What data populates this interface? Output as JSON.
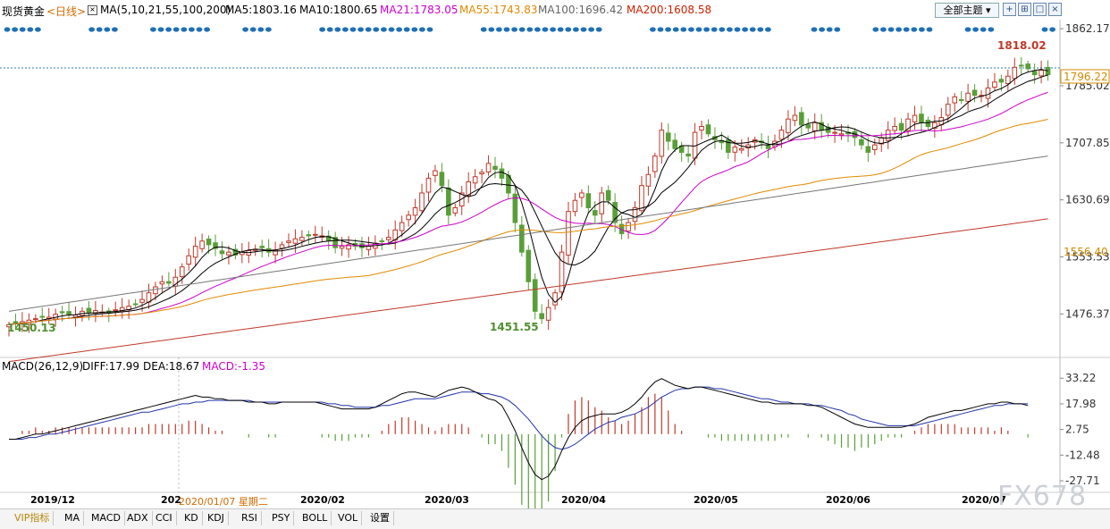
{
  "header": {
    "symbol": "现货黄金",
    "period": "<日线>",
    "ma_label": "MA(5,10,21,55,100,200)",
    "ma_items": [
      {
        "text": "MA5:1803.16",
        "color": "#000000"
      },
      {
        "text": "MA10:1800.65",
        "color": "#000000"
      },
      {
        "text": "MA21:1783.05",
        "color": "#cc00cc"
      },
      {
        "text": "MA55:1743.83",
        "color": "#e08a00"
      },
      {
        "text": "MA100:1696.42",
        "color": "#666666"
      },
      {
        "text": "MA200:1608.58",
        "color": "#cc2200"
      }
    ],
    "theme_button": "全部主题",
    "icons": [
      "add-window-icon",
      "split-window-icon",
      "maximize-icon",
      "close-icon"
    ]
  },
  "price_axis": {
    "ticks": [
      "1862.17",
      "1785.02",
      "1707.85",
      "1630.69",
      "1553.53",
      "1476.37"
    ],
    "tick_values": [
      1862.17,
      1785.02,
      1707.85,
      1630.69,
      1553.53,
      1476.37
    ],
    "current_price": "1796.22",
    "ma55_tag": "1556.40"
  },
  "annotations": {
    "low_left": "1450.13",
    "low_mid": "1451.55",
    "high": "1818.02"
  },
  "macd": {
    "label": "MACD(26,12,9)",
    "diff": "DIFF:17.99",
    "dea": "DEA:18.67",
    "macd": "MACD:-1.35",
    "ticks": [
      "33.22",
      "17.98",
      "2.75",
      "-12.48",
      "-27.71"
    ],
    "tick_values": [
      33.22,
      17.98,
      2.75,
      -12.48,
      -27.71
    ]
  },
  "dates": {
    "labels": [
      "2019/12",
      "202",
      "2020/02",
      "2020/03",
      "2020/04",
      "2020/05",
      "2020/06",
      "2020/07"
    ],
    "cursor_date": "2020/01/07 星期二"
  },
  "bottom_tabs": [
    "VIP指标",
    "MA",
    "MACD",
    "ADX",
    "CCI",
    "KD",
    "KDJ",
    "RSI",
    "PSY",
    "BOLL",
    "VOL",
    "设置"
  ],
  "watermark": "FX678",
  "colors": {
    "up": "#c0392b",
    "down": "#5a9e3a",
    "ma5": "#000000",
    "ma10": "#000000",
    "ma21": "#cc00cc",
    "ma55": "#e08a00",
    "ma100": "#777777",
    "ma200": "#c0392b",
    "diff": "#000000",
    "dea": "#2233aa",
    "event_dot": "#1f6fb5"
  },
  "chart_data": {
    "type": "candlestick",
    "title": "现货黄金 日线",
    "ylim": [
      1420,
      1872
    ],
    "macd_ylim": [
      -33,
      36
    ],
    "close_series": [
      1462,
      1464,
      1466,
      1468,
      1470,
      1473,
      1472,
      1476,
      1478,
      1476,
      1475,
      1480,
      1478,
      1481,
      1479,
      1478,
      1482,
      1485,
      1487,
      1490,
      1496,
      1505,
      1513,
      1520,
      1518,
      1526,
      1540,
      1555,
      1568,
      1575,
      1570,
      1565,
      1558,
      1560,
      1556,
      1560,
      1562,
      1564,
      1566,
      1560,
      1563,
      1570,
      1575,
      1578,
      1580,
      1582,
      1584,
      1582,
      1576,
      1566,
      1568,
      1570,
      1568,
      1566,
      1568,
      1572,
      1575,
      1580,
      1590,
      1600,
      1610,
      1620,
      1640,
      1660,
      1670,
      1650,
      1610,
      1620,
      1640,
      1655,
      1662,
      1668,
      1680,
      1672,
      1660,
      1640,
      1600,
      1560,
      1520,
      1480,
      1470,
      1485,
      1505,
      1560,
      1615,
      1630,
      1640,
      1620,
      1610,
      1640,
      1630,
      1600,
      1585,
      1600,
      1620,
      1650,
      1665,
      1690,
      1725,
      1710,
      1700,
      1695,
      1690,
      1722,
      1730,
      1720,
      1712,
      1708,
      1695,
      1702,
      1700,
      1705,
      1712,
      1708,
      1700,
      1710,
      1725,
      1740,
      1745,
      1732,
      1728,
      1735,
      1725,
      1722,
      1722,
      1720,
      1720,
      1715,
      1705,
      1695,
      1705,
      1715,
      1725,
      1730,
      1725,
      1740,
      1745,
      1735,
      1730,
      1735,
      1742,
      1760,
      1770,
      1765,
      1775,
      1772,
      1772,
      1782,
      1790,
      1790,
      1798,
      1810,
      1812,
      1808,
      1800,
      1806,
      1800
    ],
    "diff_series": [
      -3,
      -3,
      -2,
      -1,
      0,
      0,
      1,
      2,
      3,
      4,
      5,
      6,
      7,
      8,
      9,
      10,
      11,
      12,
      13,
      14,
      15,
      16,
      17,
      18,
      19,
      20,
      21,
      22,
      23,
      22,
      22,
      21,
      21,
      20,
      20,
      20,
      19,
      19,
      19,
      18,
      18,
      19,
      19,
      19,
      19,
      19,
      19,
      18,
      17,
      16,
      15,
      15,
      15,
      15,
      15,
      16,
      18,
      20,
      22,
      24,
      25,
      25,
      24,
      23,
      22,
      24,
      26,
      27,
      28,
      27,
      25,
      23,
      21,
      20,
      17,
      10,
      2,
      -8,
      -17,
      -24,
      -27,
      -25,
      -19,
      -10,
      -2,
      4,
      8,
      10,
      11,
      12,
      12,
      12,
      13,
      15,
      18,
      22,
      27,
      31,
      33,
      31,
      29,
      28,
      27,
      28,
      28,
      27,
      26,
      25,
      24,
      23,
      22,
      21,
      20,
      19,
      19,
      18,
      18,
      18,
      18,
      18,
      17,
      17,
      16,
      14,
      12,
      10,
      8,
      6,
      5,
      4,
      4,
      4,
      4,
      4,
      4,
      5,
      6,
      8,
      10,
      11,
      12,
      13,
      14,
      14,
      15,
      16,
      17,
      18,
      18,
      19,
      19,
      18,
      18,
      17
    ],
    "dea_series": [
      -3,
      -3,
      -3,
      -2,
      -2,
      -1,
      0,
      0,
      1,
      2,
      3,
      4,
      5,
      6,
      7,
      8,
      9,
      10,
      11,
      12,
      13,
      13,
      14,
      15,
      16,
      17,
      18,
      18,
      19,
      19,
      20,
      20,
      20,
      20,
      20,
      20,
      20,
      19,
      19,
      19,
      19,
      19,
      19,
      19,
      19,
      19,
      19,
      19,
      18,
      18,
      17,
      17,
      16,
      16,
      16,
      16,
      17,
      17,
      18,
      19,
      20,
      21,
      21,
      21,
      21,
      22,
      23,
      24,
      25,
      25,
      25,
      24,
      24,
      23,
      22,
      20,
      17,
      13,
      9,
      4,
      -1,
      -5,
      -8,
      -9,
      -8,
      -6,
      -3,
      0,
      3,
      5,
      7,
      8,
      10,
      11,
      12,
      14,
      16,
      19,
      22,
      24,
      26,
      27,
      27,
      28,
      28,
      28,
      27,
      27,
      26,
      25,
      24,
      23,
      22,
      21,
      21,
      20,
      19,
      19,
      18,
      18,
      18,
      17,
      17,
      16,
      15,
      14,
      12,
      11,
      9,
      8,
      7,
      6,
      5,
      5,
      5,
      5,
      5,
      6,
      7,
      8,
      9,
      10,
      11,
      12,
      13,
      14,
      15,
      16,
      17,
      17,
      18,
      18,
      18,
      18
    ]
  }
}
